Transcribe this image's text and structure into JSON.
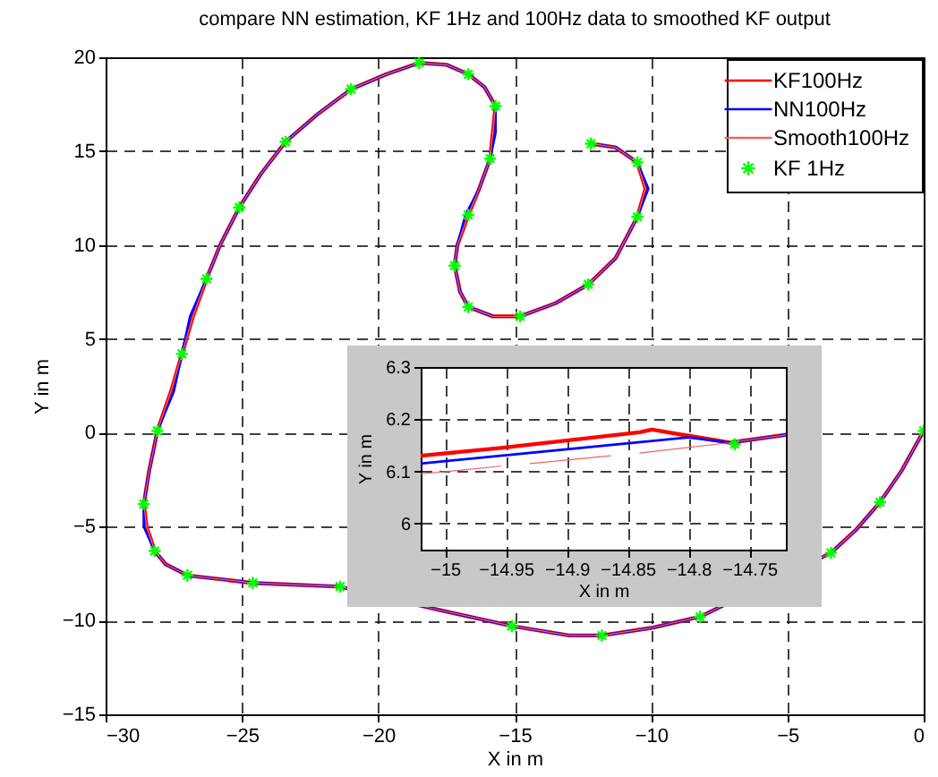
{
  "chart_data": [
    {
      "type": "line",
      "title": "compare NN estimation, KF 1Hz and 100Hz data to smoothed KF output",
      "xlabel": "X in m",
      "ylabel": "Y in m",
      "xlim": [
        -30,
        0
      ],
      "ylim": [
        -15,
        20
      ],
      "xticks": [
        -30,
        -25,
        -20,
        -15,
        -10,
        -5,
        0
      ],
      "yticks": [
        -15,
        -10,
        -5,
        0,
        5,
        10,
        15,
        20
      ],
      "grid": true,
      "legend": "top right",
      "series": [
        {
          "name": "KF100Hz",
          "type": "line",
          "color": "#ff0000",
          "x": [
            0,
            -0.8,
            -1.6,
            -2.5,
            -3.4,
            -8.2,
            -10,
            -11.8,
            -13,
            -15.1,
            -18.2,
            -21.4,
            -24.6,
            -27,
            -27.8,
            -28.2,
            -28.5,
            -28.6,
            -28.4,
            -28.1,
            -27.6,
            -27.2,
            -26.8,
            -26.3,
            -25.8,
            -25.1,
            -24.3,
            -23.4,
            -22.2,
            -21,
            -19.7,
            -18.5,
            -17.5,
            -16.7,
            -16.1,
            -15.7,
            -15.8,
            -15.9,
            -16.3,
            -16.7,
            -17.1,
            -17.2,
            -17,
            -16.7,
            -15.8,
            -14.8,
            -13.5,
            -12.3,
            -11.3,
            -10.5,
            -10.2,
            -10.5,
            -11.3,
            -12.2
          ],
          "values": [
            0.1,
            -2,
            -3.7,
            -5.2,
            -6.4,
            -9.8,
            -10.4,
            -10.8,
            -10.8,
            -10.3,
            -9.3,
            -8.2,
            -8,
            -7.6,
            -7,
            -6.3,
            -5,
            -3.8,
            -2,
            0.1,
            2.2,
            4.2,
            6.2,
            8.2,
            10,
            12,
            13.8,
            15.5,
            17,
            18.3,
            19.1,
            19.7,
            19.6,
            19.1,
            18.4,
            17.4,
            16,
            14.6,
            13,
            11.6,
            10,
            8.9,
            7.5,
            6.7,
            6.2,
            6.2,
            6.9,
            7.9,
            9.3,
            11.5,
            13,
            14.4,
            15.2,
            15.4
          ]
        },
        {
          "name": "NN100Hz",
          "type": "line",
          "color": "#0000ff",
          "x": [
            0,
            -0.8,
            -1.6,
            -2.5,
            -3.4,
            -8.2,
            -10,
            -11.8,
            -13,
            -15.1,
            -18.2,
            -21.4,
            -24.6,
            -27,
            -27.8,
            -28.2,
            -28.6,
            -28.6,
            -28.4,
            -28.1,
            -27.5,
            -27.2,
            -26.9,
            -26.3,
            -25.8,
            -25.1,
            -24.3,
            -23.4,
            -22.2,
            -21,
            -19.7,
            -18.5,
            -17.5,
            -16.7,
            -16.1,
            -15.7,
            -15.7,
            -15.9,
            -16.3,
            -16.8,
            -17.1,
            -17.2,
            -17,
            -16.7,
            -15.8,
            -14.8,
            -13.5,
            -12.3,
            -11.3,
            -10.5,
            -10.1,
            -10.5,
            -11.3,
            -12.2
          ],
          "values": [
            0.1,
            -2,
            -3.7,
            -5.2,
            -6.4,
            -9.8,
            -10.4,
            -10.8,
            -10.8,
            -10.3,
            -9.3,
            -8.2,
            -8,
            -7.6,
            -7,
            -6.3,
            -5,
            -3.8,
            -2,
            0.1,
            2.2,
            4.2,
            6.2,
            8.2,
            10,
            12,
            13.8,
            15.5,
            17,
            18.3,
            19.1,
            19.7,
            19.6,
            19.1,
            18.4,
            17.4,
            16,
            14.6,
            13,
            11.6,
            10,
            8.9,
            7.5,
            6.7,
            6.2,
            6.2,
            6.9,
            7.9,
            9.3,
            11.5,
            13,
            14.4,
            15.2,
            15.4
          ]
        },
        {
          "name": "Smooth100Hz",
          "type": "line",
          "color": "#f06464",
          "x": [
            0,
            -0.8,
            -1.6,
            -2.5,
            -3.4,
            -8.2,
            -10,
            -11.8,
            -13,
            -15.1,
            -18.2,
            -21.4,
            -24.6,
            -27,
            -27.8,
            -28.2,
            -28.5,
            -28.6,
            -28.4,
            -28.1,
            -27.6,
            -27.2,
            -26.8,
            -26.3,
            -25.8,
            -25.1,
            -24.3,
            -23.4,
            -22.2,
            -21,
            -19.7,
            -18.5,
            -17.5,
            -16.7,
            -16.1,
            -15.7,
            -15.8,
            -15.9,
            -16.3,
            -16.7,
            -17.1,
            -17.2,
            -17,
            -16.7,
            -15.8,
            -14.8,
            -13.5,
            -12.3,
            -11.3,
            -10.5,
            -10.2,
            -10.5,
            -11.3,
            -12.2
          ],
          "values": [
            0.1,
            -2,
            -3.7,
            -5.2,
            -6.4,
            -9.8,
            -10.4,
            -10.8,
            -10.8,
            -10.3,
            -9.3,
            -8.2,
            -8,
            -7.6,
            -7,
            -6.3,
            -5,
            -3.8,
            -2,
            0.1,
            2.2,
            4.2,
            6.2,
            8.2,
            10,
            12,
            13.8,
            15.5,
            17,
            18.3,
            19.1,
            19.7,
            19.6,
            19.1,
            18.4,
            17.4,
            16,
            14.6,
            13,
            11.6,
            10,
            8.9,
            7.5,
            6.7,
            6.2,
            6.2,
            6.9,
            7.9,
            9.3,
            11.5,
            13,
            14.4,
            15.2,
            15.4
          ]
        },
        {
          "name": "KF 1Hz",
          "type": "scatter",
          "marker": "cross",
          "color": "#00ff00",
          "x": [
            0,
            -1.6,
            -3.4,
            -8.2,
            -11.8,
            -15.1,
            -18.2,
            -21.4,
            -24.6,
            -27,
            -28.2,
            -28.6,
            -28.1,
            -27.2,
            -26.3,
            -25.1,
            -23.4,
            -21,
            -18.5,
            -16.7,
            -15.7,
            -15.9,
            -16.7,
            -17.2,
            -16.7,
            -14.8,
            -12.3,
            -10.5,
            -10.5,
            -12.2
          ],
          "values": [
            0.1,
            -3.7,
            -6.4,
            -9.8,
            -10.8,
            -10.3,
            null,
            -8.2,
            -8,
            -7.6,
            -6.3,
            -3.8,
            0.1,
            4.2,
            8.2,
            12,
            15.5,
            18.3,
            19.7,
            19.1,
            17.4,
            14.6,
            11.6,
            8.9,
            6.7,
            6.2,
            7.9,
            11.5,
            14.4,
            15.4
          ]
        }
      ]
    },
    {
      "type": "line",
      "xlabel": "X in m",
      "ylabel": "Y in m",
      "xlim": [
        -15.02,
        -14.72
      ],
      "ylim": [
        5.95,
        6.3
      ],
      "xticks": [
        -15,
        -14.95,
        -14.9,
        -14.85,
        -14.8,
        -14.75
      ],
      "yticks": [
        6,
        6.1,
        6.2,
        6.3
      ],
      "grid": true,
      "series": [
        {
          "type": "line",
          "color": "#ff0000",
          "x": [
            -15.02,
            -14.954,
            -14.84,
            -14.83,
            -14.766,
            -14.72
          ],
          "values": [
            6.13,
            6.145,
            6.175,
            6.18,
            6.155,
            6.17
          ]
        },
        {
          "type": "line",
          "color": "#0000ff",
          "x": [
            -15.02,
            -14.8,
            -14.766,
            -14.72
          ],
          "values": [
            6.115,
            6.165,
            6.155,
            6.17
          ]
        },
        {
          "type": "line",
          "color": "#f06464",
          "x": [
            -15.02,
            -14.954,
            -14.94,
            -14.93,
            -14.864,
            -14.85,
            -14.84,
            -14.766,
            -14.72
          ],
          "values": [
            6.095,
            6.11,
            null,
            6.115,
            6.13,
            null,
            6.135,
            6.155,
            6.17
          ]
        },
        {
          "type": "scatter",
          "marker": "cross",
          "color": "#00ff00",
          "x": [
            -14.762
          ],
          "values": [
            6.152
          ]
        }
      ]
    }
  ]
}
